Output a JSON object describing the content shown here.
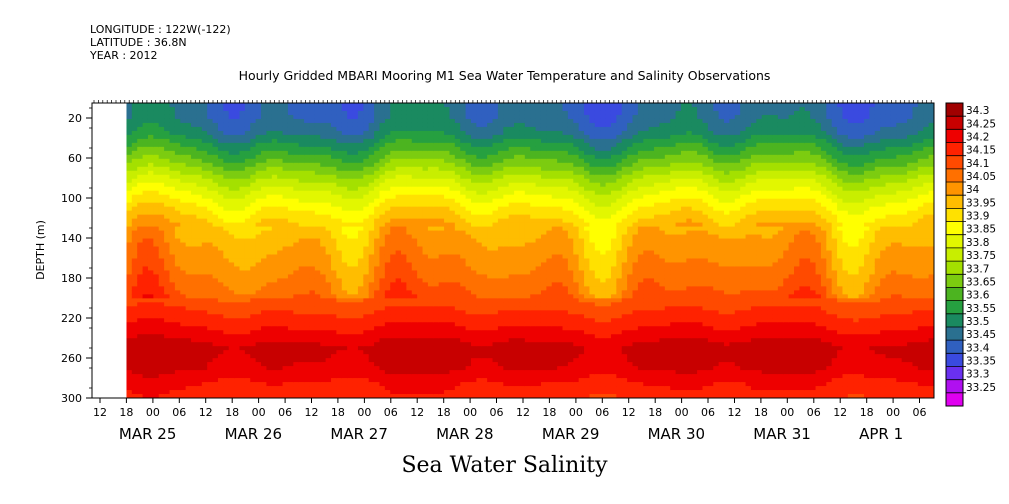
{
  "header": {
    "longitude": "LONGITUDE : 122W(-122)",
    "latitude": "LATITUDE : 36.8N",
    "year": "YEAR : 2012"
  },
  "chart_data": {
    "type": "heatmap",
    "title": "Hourly Gridded MBARI Mooring M1 Sea Water Temperature and Salinity Observations",
    "xlabel": "Sea Water Salinity",
    "ylabel": "DEPTH (m)",
    "ylim": [
      300,
      5
    ],
    "y_ticks": [
      20,
      60,
      100,
      140,
      180,
      220,
      260,
      300
    ],
    "hour_ticks": [
      "12",
      "18",
      "00",
      "06",
      "12",
      "18",
      "00",
      "06",
      "12",
      "18",
      "00",
      "06",
      "12",
      "18",
      "00",
      "06",
      "12",
      "18",
      "00",
      "06",
      "12",
      "18",
      "00",
      "06",
      "12",
      "18",
      "00",
      "06",
      "12",
      "18",
      "00",
      "06"
    ],
    "date_labels": [
      "MAR 25",
      "MAR 26",
      "MAR 27",
      "MAR 28",
      "MAR 29",
      "MAR 30",
      "MAR 31",
      "APR  1"
    ],
    "data_start": "MAR 25 18",
    "legend": {
      "position": "right",
      "levels": [
        "34.3",
        "34.25",
        "34.2",
        "34.15",
        "34.1",
        "34.05",
        "34",
        "33.95",
        "33.9",
        "33.85",
        "33.8",
        "33.75",
        "33.7",
        "33.65",
        "33.6",
        "33.55",
        "33.5",
        "33.45",
        "33.4",
        "33.35",
        "33.3",
        "33.25"
      ],
      "colors": [
        "#a00000",
        "#c80000",
        "#ee0000",
        "#ff2200",
        "#ff4a00",
        "#ff7000",
        "#ff9400",
        "#ffbd00",
        "#ffe100",
        "#ffff00",
        "#e2f700",
        "#c8ee00",
        "#a4e000",
        "#7ccc10",
        "#4cb420",
        "#26a040",
        "#1a8a60",
        "#2a7090",
        "#3060c0",
        "#3a4ae0",
        "#6a30f0",
        "#b010f0",
        "#e000f0"
      ]
    },
    "profile": {
      "depths": [
        5,
        20,
        35,
        50,
        65,
        80,
        95,
        110,
        125,
        145,
        175,
        195,
        210,
        230,
        250,
        270,
        285,
        300
      ],
      "salinity": [
        33.45,
        33.46,
        33.5,
        33.58,
        33.66,
        33.75,
        33.83,
        33.9,
        33.96,
        34.0,
        34.05,
        34.09,
        34.14,
        34.2,
        34.27,
        34.25,
        34.2,
        34.17
      ]
    }
  }
}
